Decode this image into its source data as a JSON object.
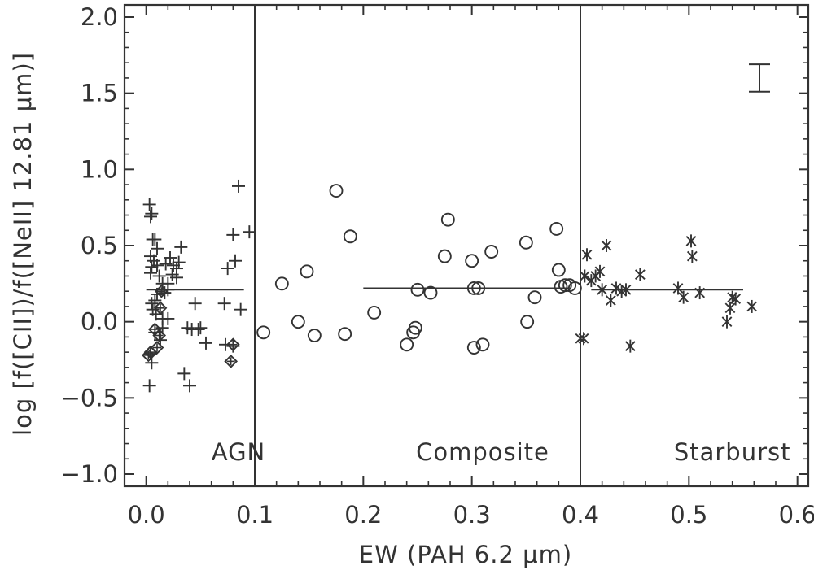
{
  "chart_data": {
    "type": "scatter",
    "xlabel": "EW (PAH 6.2 μm)",
    "ylabel": "log [f([CII])/f([NeII] 12.81 μm)]",
    "xlim": [
      -0.02,
      0.61
    ],
    "ylim": [
      -1.08,
      2.08
    ],
    "x_ticks": [
      0.0,
      0.1,
      0.2,
      0.3,
      0.4,
      0.5,
      0.6
    ],
    "x_tick_labels": [
      "0.0",
      "0.1",
      "0.2",
      "0.3",
      "0.4",
      "0.5",
      "0.6"
    ],
    "y_ticks": [
      -1.0,
      -0.5,
      0.0,
      0.5,
      1.0,
      1.5,
      2.0
    ],
    "y_tick_labels": [
      "−1.0",
      "−0.5",
      "0.0",
      "0.5",
      "1.0",
      "1.5",
      "2.0"
    ],
    "grid": false,
    "dividers_x": [
      0.1,
      0.4
    ],
    "region_labels": [
      {
        "text": "AGN",
        "x": 0.085
      },
      {
        "text": "Composite",
        "x": 0.31
      },
      {
        "text": "Starburst",
        "x": 0.54
      }
    ],
    "median_lines": [
      {
        "x": [
          0.0,
          0.09
        ],
        "y": 0.21
      },
      {
        "x": [
          0.2,
          0.39
        ],
        "y": 0.22
      },
      {
        "x": [
          0.41,
          0.55
        ],
        "y": 0.21
      }
    ],
    "error_bar": {
      "x": 0.565,
      "y": 1.6,
      "half_height": 0.09
    },
    "series": [
      {
        "marker": "plus",
        "x": [
          0.003,
          0.005,
          0.004,
          0.006,
          0.008,
          0.01,
          0.004,
          0.007,
          0.005,
          0.004,
          0.012,
          0.015,
          0.018,
          0.022,
          0.025,
          0.028,
          0.03,
          0.032,
          0.02,
          0.017,
          0.01,
          0.008,
          0.005,
          0.006,
          0.009,
          0.015,
          0.02,
          0.015,
          0.008,
          0.004,
          0.005,
          0.003,
          0.013,
          0.028,
          0.02,
          0.035,
          0.04,
          0.045,
          0.038,
          0.042,
          0.048,
          0.075,
          0.082,
          0.08,
          0.072,
          0.085,
          0.095,
          0.087,
          0.073,
          0.08,
          0.05,
          0.055,
          0.01,
          0.024
        ],
        "y": [
          0.77,
          0.71,
          0.69,
          0.54,
          0.54,
          0.48,
          0.43,
          0.4,
          0.36,
          0.32,
          0.3,
          0.25,
          0.38,
          0.42,
          0.37,
          0.35,
          0.39,
          0.49,
          0.21,
          0.19,
          0.18,
          0.14,
          0.12,
          0.08,
          0.05,
          0.02,
          0.02,
          -0.04,
          -0.07,
          -0.21,
          -0.27,
          -0.42,
          -0.12,
          0.29,
          0.25,
          -0.34,
          -0.42,
          0.12,
          -0.04,
          -0.05,
          -0.05,
          0.35,
          0.4,
          0.57,
          0.12,
          0.89,
          0.59,
          0.08,
          -0.15,
          -0.16,
          -0.04,
          -0.14,
          0.37,
          0.31
        ]
      },
      {
        "marker": "diamond",
        "x": [
          0.002,
          0.004,
          0.008,
          0.01,
          0.012,
          0.013,
          0.014,
          0.078,
          0.08
        ],
        "y": [
          -0.22,
          -0.2,
          -0.05,
          -0.17,
          -0.09,
          0.09,
          0.2,
          -0.26,
          -0.15
        ]
      },
      {
        "marker": "circle",
        "x": [
          0.108,
          0.125,
          0.14,
          0.148,
          0.155,
          0.175,
          0.183,
          0.188,
          0.21,
          0.24,
          0.246,
          0.248,
          0.25,
          0.262,
          0.275,
          0.278,
          0.3,
          0.302,
          0.302,
          0.306,
          0.31,
          0.318,
          0.35,
          0.351,
          0.358,
          0.378,
          0.38,
          0.382,
          0.386,
          0.39,
          0.395
        ],
        "y": [
          -0.07,
          0.25,
          0.0,
          0.33,
          -0.09,
          0.86,
          -0.08,
          0.56,
          0.06,
          -0.15,
          -0.07,
          -0.04,
          0.21,
          0.19,
          0.43,
          0.67,
          0.4,
          -0.17,
          0.22,
          0.22,
          -0.15,
          0.46,
          0.52,
          0.0,
          0.16,
          0.61,
          0.34,
          0.23,
          0.24,
          0.24,
          0.22
        ]
      },
      {
        "marker": "asterisk",
        "x": [
          0.4,
          0.403,
          0.404,
          0.406,
          0.41,
          0.414,
          0.418,
          0.42,
          0.424,
          0.428,
          0.433,
          0.438,
          0.442,
          0.446,
          0.455,
          0.49,
          0.495,
          0.502,
          0.503,
          0.51,
          0.535,
          0.538,
          0.54,
          0.543,
          0.558
        ],
        "y": [
          -0.11,
          -0.11,
          0.3,
          0.44,
          0.27,
          0.3,
          0.33,
          0.21,
          0.5,
          0.14,
          0.22,
          0.2,
          0.21,
          -0.16,
          0.31,
          0.22,
          0.16,
          0.53,
          0.43,
          0.19,
          0.0,
          0.09,
          0.16,
          0.15,
          0.1
        ]
      }
    ]
  }
}
